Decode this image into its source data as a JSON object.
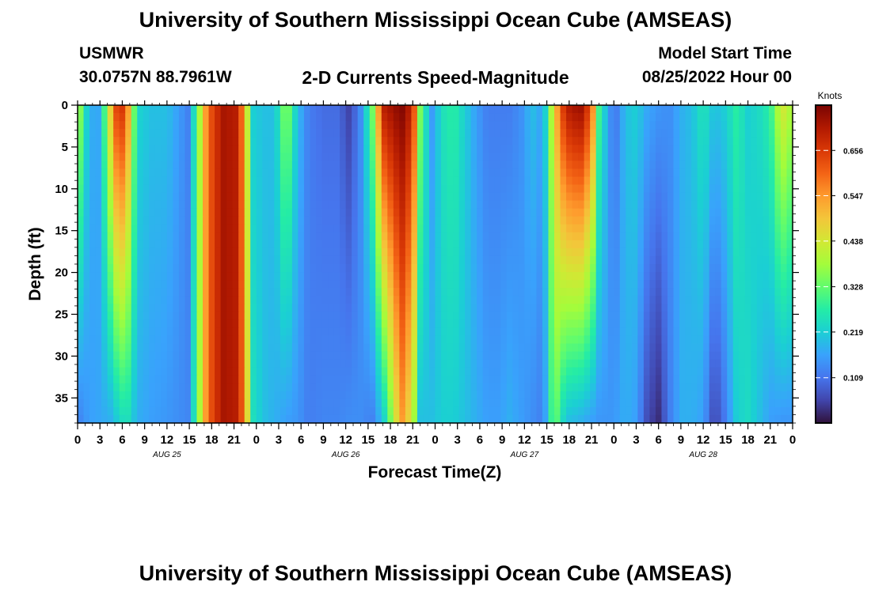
{
  "header": {
    "title": "University of Southern Mississippi Ocean Cube (AMSEAS)",
    "station": "USMWR",
    "coords": "30.0757N  88.7961W",
    "product": "2-D Currents Speed-Magnitude",
    "start_label": "Model Start Time",
    "start_value": "08/25/2022 Hour 00"
  },
  "footer": {
    "title": "University of Southern Mississippi Ocean Cube (AMSEAS)"
  },
  "chart_data": {
    "type": "heatmap",
    "title": "2-D Currents Speed-Magnitude",
    "xlabel": "Forecast Time(Z)",
    "ylabel": "Depth (ft)",
    "colorbar_label": "Knots",
    "x_range_hours": [
      0,
      96
    ],
    "y_range_ft": [
      0,
      38
    ],
    "y_inverted": true,
    "x_tick_labels": [
      "0",
      "3",
      "6",
      "9",
      "12",
      "15",
      "18",
      "21",
      "0",
      "3",
      "6",
      "9",
      "12",
      "15",
      "18",
      "21",
      "0",
      "3",
      "6",
      "9",
      "12",
      "15",
      "18",
      "21",
      "0",
      "3",
      "6",
      "9",
      "12",
      "15",
      "18",
      "21",
      "0"
    ],
    "y_ticks": [
      0,
      5,
      10,
      15,
      20,
      25,
      30,
      35
    ],
    "day_labels": [
      {
        "label": "AUG 25",
        "hour": 12
      },
      {
        "label": "AUG 26",
        "hour": 36
      },
      {
        "label": "AUG 27",
        "hour": 60
      },
      {
        "label": "AUG 28",
        "hour": 84
      }
    ],
    "colorbar_range": [
      0,
      0.765
    ],
    "colorbar_ticks": [
      0.109,
      0.219,
      0.328,
      0.438,
      0.547,
      0.656
    ],
    "colormap": [
      "#30123b",
      "#4145ab",
      "#4675ed",
      "#39a2fc",
      "#1bcfd4",
      "#24eca6",
      "#61fc6c",
      "#a4fc3b",
      "#d1e834",
      "#f3c63a",
      "#fe9b2d",
      "#f36315",
      "#d93806",
      "#b11901",
      "#7a0402"
    ],
    "columns": [
      {
        "h": 0,
        "top": 0.42,
        "bot": 0.12
      },
      {
        "h": 1.5,
        "top": 0.18,
        "bot": 0.16
      },
      {
        "h": 3,
        "top": 0.17,
        "bot": 0.17
      },
      {
        "h": 4.5,
        "top": 0.5,
        "bot": 0.18
      },
      {
        "h": 5.5,
        "top": 0.7,
        "bot": 0.22
      },
      {
        "h": 6.5,
        "top": 0.62,
        "bot": 0.26
      },
      {
        "h": 8,
        "top": 0.23,
        "bot": 0.18
      },
      {
        "h": 10,
        "top": 0.2,
        "bot": 0.16
      },
      {
        "h": 12,
        "top": 0.2,
        "bot": 0.15
      },
      {
        "h": 13.5,
        "top": 0.16,
        "bot": 0.14
      },
      {
        "h": 15,
        "top": 0.12,
        "bot": 0.13
      },
      {
        "h": 16,
        "top": 0.32,
        "bot": 0.32
      },
      {
        "h": 17.5,
        "top": 0.6,
        "bot": 0.6
      },
      {
        "h": 19.5,
        "top": 0.72,
        "bot": 0.72
      },
      {
        "h": 21.5,
        "top": 0.7,
        "bot": 0.7
      },
      {
        "h": 22.5,
        "top": 0.5,
        "bot": 0.55
      },
      {
        "h": 23.5,
        "top": 0.22,
        "bot": 0.25
      },
      {
        "h": 25,
        "top": 0.2,
        "bot": 0.2
      },
      {
        "h": 26.5,
        "top": 0.2,
        "bot": 0.18
      },
      {
        "h": 28,
        "top": 0.38,
        "bot": 0.16
      },
      {
        "h": 29.5,
        "top": 0.2,
        "bot": 0.15
      },
      {
        "h": 31,
        "top": 0.12,
        "bot": 0.12
      },
      {
        "h": 33,
        "top": 0.1,
        "bot": 0.13
      },
      {
        "h": 35,
        "top": 0.1,
        "bot": 0.13
      },
      {
        "h": 36.5,
        "top": 0.05,
        "bot": 0.14
      },
      {
        "h": 38,
        "top": 0.14,
        "bot": 0.14
      },
      {
        "h": 39.5,
        "top": 0.32,
        "bot": 0.12
      },
      {
        "h": 41,
        "top": 0.7,
        "bot": 0.2
      },
      {
        "h": 43.5,
        "top": 0.76,
        "bot": 0.55
      },
      {
        "h": 45,
        "top": 0.68,
        "bot": 0.42
      },
      {
        "h": 46,
        "top": 0.35,
        "bot": 0.2
      },
      {
        "h": 47.5,
        "top": 0.15,
        "bot": 0.2
      },
      {
        "h": 49,
        "top": 0.25,
        "bot": 0.22
      },
      {
        "h": 50.5,
        "top": 0.28,
        "bot": 0.22
      },
      {
        "h": 52,
        "top": 0.22,
        "bot": 0.2
      },
      {
        "h": 53.5,
        "top": 0.16,
        "bot": 0.18
      },
      {
        "h": 55,
        "top": 0.12,
        "bot": 0.16
      },
      {
        "h": 56.5,
        "top": 0.12,
        "bot": 0.16
      },
      {
        "h": 58,
        "top": 0.12,
        "bot": 0.18
      },
      {
        "h": 59.5,
        "top": 0.14,
        "bot": 0.16
      },
      {
        "h": 61,
        "top": 0.2,
        "bot": 0.14
      },
      {
        "h": 62.5,
        "top": 0.16,
        "bot": 0.12
      },
      {
        "h": 64,
        "top": 0.48,
        "bot": 0.35
      },
      {
        "h": 65.5,
        "top": 0.7,
        "bot": 0.2
      },
      {
        "h": 67.5,
        "top": 0.74,
        "bot": 0.18
      },
      {
        "h": 69,
        "top": 0.62,
        "bot": 0.16
      },
      {
        "h": 70,
        "top": 0.3,
        "bot": 0.15
      },
      {
        "h": 71.5,
        "top": 0.14,
        "bot": 0.15
      },
      {
        "h": 72.5,
        "top": 0.12,
        "bot": 0.16
      },
      {
        "h": 73.5,
        "top": 0.2,
        "bot": 0.18
      },
      {
        "h": 75,
        "top": 0.22,
        "bot": 0.16
      },
      {
        "h": 76.5,
        "top": 0.17,
        "bot": 0.06
      },
      {
        "h": 78,
        "top": 0.15,
        "bot": 0.03
      },
      {
        "h": 79.5,
        "top": 0.14,
        "bot": 0.12
      },
      {
        "h": 81,
        "top": 0.18,
        "bot": 0.18
      },
      {
        "h": 82.5,
        "top": 0.2,
        "bot": 0.18
      },
      {
        "h": 84,
        "top": 0.26,
        "bot": 0.16
      },
      {
        "h": 85.5,
        "top": 0.2,
        "bot": 0.05
      },
      {
        "h": 87,
        "top": 0.22,
        "bot": 0.12
      },
      {
        "h": 88.5,
        "top": 0.28,
        "bot": 0.22
      },
      {
        "h": 90,
        "top": 0.22,
        "bot": 0.24
      },
      {
        "h": 91.5,
        "top": 0.24,
        "bot": 0.2
      },
      {
        "h": 93,
        "top": 0.28,
        "bot": 0.16
      },
      {
        "h": 94.5,
        "top": 0.45,
        "bot": 0.15
      },
      {
        "h": 96,
        "top": 0.38,
        "bot": 0.15
      }
    ]
  }
}
